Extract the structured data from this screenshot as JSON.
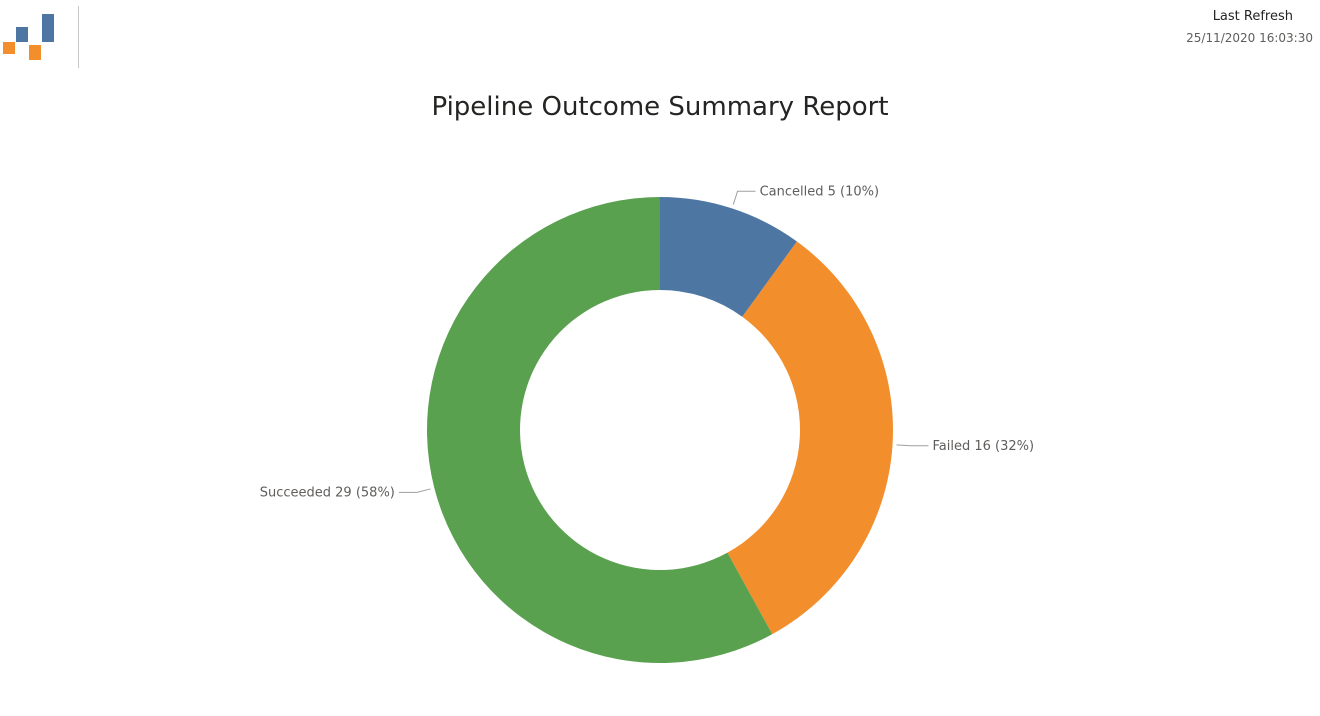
{
  "header": {
    "logo_icon": "bar-chart-logo",
    "last_refresh_label": "Last Refresh",
    "last_refresh_value": "25/11/2020 16:03:30"
  },
  "report": {
    "title": "Pipeline Outcome Summary Report"
  },
  "chart_data": {
    "type": "pie",
    "variant": "donut",
    "title": "Pipeline Outcome Summary Report",
    "slices": [
      {
        "label": "Cancelled",
        "value": 5,
        "percent": 10,
        "color": "#4e76a3",
        "display": "Cancelled 5 (10%)"
      },
      {
        "label": "Failed",
        "value": 16,
        "percent": 32,
        "color": "#f28e2c",
        "display": "Failed 16 (32%)"
      },
      {
        "label": "Succeeded",
        "value": 29,
        "percent": 58,
        "color": "#59a14f",
        "display": "Succeeded 29 (58%)"
      }
    ],
    "legend": "none"
  }
}
